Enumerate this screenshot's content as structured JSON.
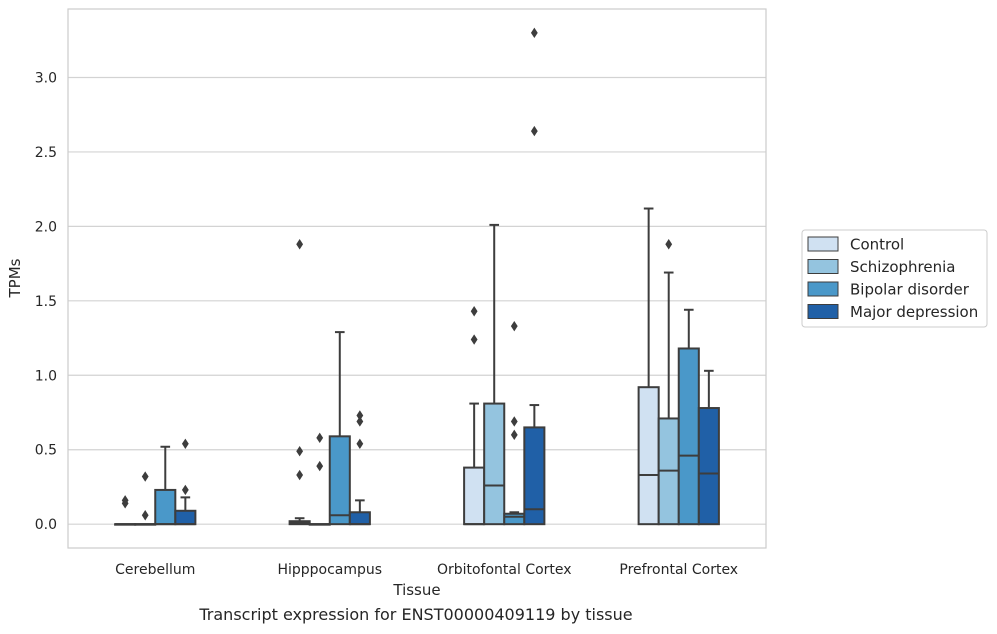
{
  "caption": "Transcript expression for ENST00000409119 by tissue",
  "chart_data": {
    "type": "box",
    "xlabel": "Tissue",
    "ylabel": "TPMs",
    "ylim": [
      -0.16,
      3.46
    ],
    "yticks": [
      "0.0",
      "0.5",
      "1.0",
      "1.5",
      "2.0",
      "2.5",
      "3.0"
    ],
    "ytick_values": [
      0,
      0.5,
      1.0,
      1.5,
      2.0,
      2.5,
      3.0
    ],
    "grid": "horizontal",
    "legend_position": "right",
    "categories": [
      "Cerebellum",
      "Hipppocampus",
      "Orbitofontal Cortex",
      "Prefrontal Cortex"
    ],
    "series": [
      {
        "name": "Control",
        "color": "#d0e1f2",
        "boxes": [
          {
            "whislo": 0,
            "q1": 0,
            "med": 0,
            "q3": 0,
            "whishi": 0,
            "fliers": [
              0.14,
              0.16
            ]
          },
          {
            "whislo": 0,
            "q1": 0,
            "med": 0.01,
            "q3": 0.02,
            "whishi": 0.04,
            "fliers": [
              0.33,
              0.49,
              1.88
            ]
          },
          {
            "whislo": 0,
            "q1": 0,
            "med": 0,
            "q3": 0.38,
            "whishi": 0.81,
            "fliers": [
              1.24,
              1.43
            ]
          },
          {
            "whislo": 0,
            "q1": 0,
            "med": 0.33,
            "q3": 0.92,
            "whishi": 2.12,
            "fliers": []
          }
        ]
      },
      {
        "name": "Schizophrenia",
        "color": "#94c4df",
        "boxes": [
          {
            "whislo": 0,
            "q1": 0,
            "med": 0,
            "q3": 0,
            "whishi": 0,
            "fliers": [
              0.06,
              0.32
            ]
          },
          {
            "whislo": 0,
            "q1": 0,
            "med": 0,
            "q3": 0,
            "whishi": 0,
            "fliers": [
              0.39,
              0.58
            ]
          },
          {
            "whislo": 0,
            "q1": 0,
            "med": 0.26,
            "q3": 0.81,
            "whishi": 2.01,
            "fliers": []
          },
          {
            "whislo": 0,
            "q1": 0,
            "med": 0.36,
            "q3": 0.71,
            "whishi": 1.69,
            "fliers": [
              1.88
            ]
          }
        ]
      },
      {
        "name": "Bipolar disorder",
        "color": "#4a98c9",
        "boxes": [
          {
            "whislo": 0,
            "q1": 0,
            "med": 0,
            "q3": 0.23,
            "whishi": 0.52,
            "fliers": []
          },
          {
            "whislo": 0,
            "q1": 0,
            "med": 0.06,
            "q3": 0.59,
            "whishi": 1.29,
            "fliers": []
          },
          {
            "whislo": 0,
            "q1": 0,
            "med": 0.05,
            "q3": 0.07,
            "whishi": 0.08,
            "fliers": [
              0.6,
              0.69,
              1.33
            ]
          },
          {
            "whislo": 0,
            "q1": 0,
            "med": 0.46,
            "q3": 1.18,
            "whishi": 1.44,
            "fliers": []
          }
        ]
      },
      {
        "name": "Major depression",
        "color": "#2060a7",
        "boxes": [
          {
            "whislo": 0,
            "q1": 0,
            "med": 0,
            "q3": 0.09,
            "whishi": 0.18,
            "fliers": [
              0.23,
              0.54
            ]
          },
          {
            "whislo": 0,
            "q1": 0,
            "med": 0,
            "q3": 0.08,
            "whishi": 0.16,
            "fliers": [
              0.54,
              0.69,
              0.73
            ]
          },
          {
            "whislo": 0,
            "q1": 0,
            "med": 0.1,
            "q3": 0.65,
            "whishi": 0.8,
            "fliers": [
              2.64,
              3.3
            ]
          },
          {
            "whislo": 0,
            "q1": 0,
            "med": 0.34,
            "q3": 0.78,
            "whishi": 1.03,
            "fliers": []
          }
        ]
      }
    ]
  }
}
